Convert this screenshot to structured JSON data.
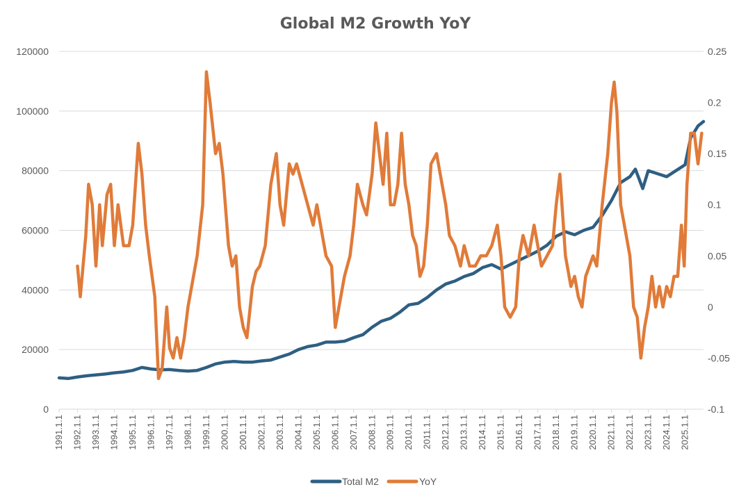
{
  "chart_data": {
    "type": "line",
    "title": "Global M2 Growth YoY",
    "xlabel": "",
    "ylabel": "",
    "y_left": {
      "range": [
        0,
        120000
      ],
      "ticks": [
        "0",
        "20000",
        "40000",
        "60000",
        "80000",
        "100000",
        "120000"
      ]
    },
    "y_right": {
      "range": [
        -0.1,
        0.25
      ],
      "ticks": [
        "-0.1",
        "-0.05",
        "0",
        "0.05",
        "0.1",
        "0.15",
        "0.2",
        "0.25"
      ]
    },
    "x_ticks": [
      "1991.1.1",
      "1992.1.1",
      "1993.1.1",
      "1994.1.1",
      "1995.1.1",
      "1996.1.1",
      "1997.1.1",
      "1998.1.1",
      "1999.1.1",
      "2000.1.1",
      "2001.1.1",
      "2002.1.1",
      "2003.1.1",
      "2004.1.1",
      "2005.1.1",
      "2006.1.1",
      "2007.1.1",
      "2008.1.1",
      "2009.1.1",
      "2010.1.1",
      "2011.1.1",
      "2012.1.1",
      "2013.1.1",
      "2014.1.1",
      "2015.1.1",
      "2016.1.1",
      "2017.1.1",
      "2018.1.1",
      "2019.1.1",
      "2020.1.1",
      "2021.1.1",
      "2022.1.1",
      "2023.1.1",
      "2024.1.1",
      "2025.1.1"
    ],
    "grid": true,
    "legend": "bottom",
    "series": [
      {
        "name": "Total M2",
        "axis": "left",
        "color": "#2e5f82",
        "x": [
          1991.0,
          1991.5,
          1992.0,
          1992.5,
          1993.0,
          1993.5,
          1994.0,
          1994.5,
          1995.0,
          1995.5,
          1996.0,
          1996.5,
          1997.0,
          1997.5,
          1998.0,
          1998.5,
          1999.0,
          1999.5,
          2000.0,
          2000.5,
          2001.0,
          2001.5,
          2002.0,
          2002.5,
          2003.0,
          2003.5,
          2004.0,
          2004.5,
          2005.0,
          2005.5,
          2006.0,
          2006.5,
          2007.0,
          2007.5,
          2008.0,
          2008.5,
          2009.0,
          2009.5,
          2010.0,
          2010.5,
          2011.0,
          2011.5,
          2012.0,
          2012.5,
          2013.0,
          2013.5,
          2014.0,
          2014.5,
          2015.0,
          2015.5,
          2016.0,
          2016.5,
          2017.0,
          2017.5,
          2018.0,
          2018.5,
          2019.0,
          2019.5,
          2020.0,
          2020.5,
          2021.0,
          2021.5,
          2022.0,
          2022.3,
          2022.7,
          2023.0,
          2023.5,
          2024.0,
          2024.5,
          2025.0,
          2025.3,
          2025.7,
          2026.0
        ],
        "values": [
          10500,
          10300,
          10800,
          11200,
          11500,
          11800,
          12200,
          12500,
          13000,
          14000,
          13500,
          13200,
          13300,
          13000,
          12800,
          13000,
          14000,
          15200,
          15800,
          16000,
          15800,
          15800,
          16200,
          16500,
          17500,
          18500,
          20000,
          21000,
          21500,
          22500,
          22500,
          22800,
          24000,
          25000,
          27500,
          29500,
          30500,
          32500,
          35000,
          35500,
          37500,
          40000,
          42000,
          43000,
          44500,
          45500,
          47500,
          48500,
          47000,
          48500,
          50000,
          51500,
          53000,
          55000,
          58000,
          59500,
          58500,
          60000,
          61000,
          65000,
          70000,
          76000,
          78000,
          80500,
          74000,
          80000,
          79000,
          78000,
          80000,
          82000,
          91000,
          95000,
          96500
        ]
      },
      {
        "name": "YoY",
        "axis": "right",
        "color": "#e07b39",
        "x": [
          1992.0,
          1992.15,
          1992.45,
          1992.6,
          1992.8,
          1993.0,
          1993.2,
          1993.35,
          1993.6,
          1993.8,
          1994.0,
          1994.2,
          1994.5,
          1994.8,
          1995.0,
          1995.3,
          1995.5,
          1995.7,
          1995.9,
          1996.2,
          1996.4,
          1996.6,
          1996.85,
          1997.0,
          1997.2,
          1997.4,
          1997.6,
          1997.8,
          1998.0,
          1998.2,
          1998.5,
          1998.8,
          1999.0,
          1999.2,
          1999.5,
          1999.7,
          1999.9,
          2000.2,
          2000.4,
          2000.6,
          2000.8,
          2001.0,
          2001.2,
          2001.5,
          2001.7,
          2001.9,
          2002.2,
          2002.5,
          2002.8,
          2003.0,
          2003.2,
          2003.5,
          2003.7,
          2003.9,
          2004.2,
          2004.5,
          2004.8,
          2005.0,
          2005.3,
          2005.5,
          2005.8,
          2006.0,
          2006.2,
          2006.5,
          2006.8,
          2007.0,
          2007.2,
          2007.5,
          2007.7,
          2008.0,
          2008.2,
          2008.4,
          2008.6,
          2008.8,
          2009.0,
          2009.2,
          2009.4,
          2009.6,
          2009.8,
          2010.0,
          2010.2,
          2010.4,
          2010.6,
          2010.8,
          2011.0,
          2011.2,
          2011.5,
          2011.8,
          2012.0,
          2012.2,
          2012.5,
          2012.8,
          2013.0,
          2013.3,
          2013.6,
          2013.9,
          2014.2,
          2014.5,
          2014.8,
          2015.0,
          2015.2,
          2015.5,
          2015.8,
          2016.0,
          2016.2,
          2016.5,
          2016.8,
          2017.0,
          2017.2,
          2017.5,
          2017.8,
          2018.0,
          2018.2,
          2018.5,
          2018.8,
          2019.0,
          2019.2,
          2019.4,
          2019.6,
          2019.8,
          2020.0,
          2020.2,
          2020.5,
          2020.8,
          2021.0,
          2021.15,
          2021.3,
          2021.5,
          2021.8,
          2022.0,
          2022.2,
          2022.4,
          2022.6,
          2022.8,
          2023.0,
          2023.2,
          2023.4,
          2023.6,
          2023.8,
          2024.0,
          2024.2,
          2024.4,
          2024.6,
          2024.8,
          2024.95,
          2025.1,
          2025.3,
          2025.5,
          2025.7,
          2025.9
        ],
        "values": [
          0.04,
          0.01,
          0.07,
          0.12,
          0.1,
          0.04,
          0.1,
          0.06,
          0.11,
          0.12,
          0.06,
          0.1,
          0.06,
          0.06,
          0.08,
          0.16,
          0.13,
          0.08,
          0.05,
          0.01,
          -0.07,
          -0.06,
          0.0,
          -0.04,
          -0.05,
          -0.03,
          -0.05,
          -0.03,
          0.0,
          0.02,
          0.05,
          0.1,
          0.23,
          0.2,
          0.15,
          0.16,
          0.13,
          0.06,
          0.04,
          0.05,
          0.0,
          -0.02,
          -0.03,
          0.02,
          0.035,
          0.04,
          0.06,
          0.12,
          0.15,
          0.1,
          0.08,
          0.14,
          0.13,
          0.14,
          0.12,
          0.1,
          0.08,
          0.1,
          0.07,
          0.05,
          0.04,
          -0.02,
          0.0,
          0.03,
          0.05,
          0.08,
          0.12,
          0.1,
          0.09,
          0.13,
          0.18,
          0.15,
          0.12,
          0.17,
          0.1,
          0.1,
          0.12,
          0.17,
          0.12,
          0.1,
          0.07,
          0.06,
          0.03,
          0.04,
          0.08,
          0.14,
          0.15,
          0.12,
          0.1,
          0.07,
          0.06,
          0.04,
          0.06,
          0.04,
          0.04,
          0.05,
          0.05,
          0.06,
          0.08,
          0.05,
          0.0,
          -0.01,
          0.0,
          0.05,
          0.07,
          0.05,
          0.08,
          0.06,
          0.04,
          0.05,
          0.06,
          0.1,
          0.13,
          0.05,
          0.02,
          0.03,
          0.01,
          0.0,
          0.03,
          0.04,
          0.05,
          0.04,
          0.1,
          0.15,
          0.2,
          0.22,
          0.19,
          0.1,
          0.07,
          0.05,
          0.0,
          -0.01,
          -0.05,
          -0.02,
          0.0,
          0.03,
          0.0,
          0.02,
          0.0,
          0.02,
          0.01,
          0.03,
          0.03,
          0.08,
          0.04,
          0.12,
          0.17,
          0.17,
          0.14,
          0.17
        ]
      }
    ]
  }
}
